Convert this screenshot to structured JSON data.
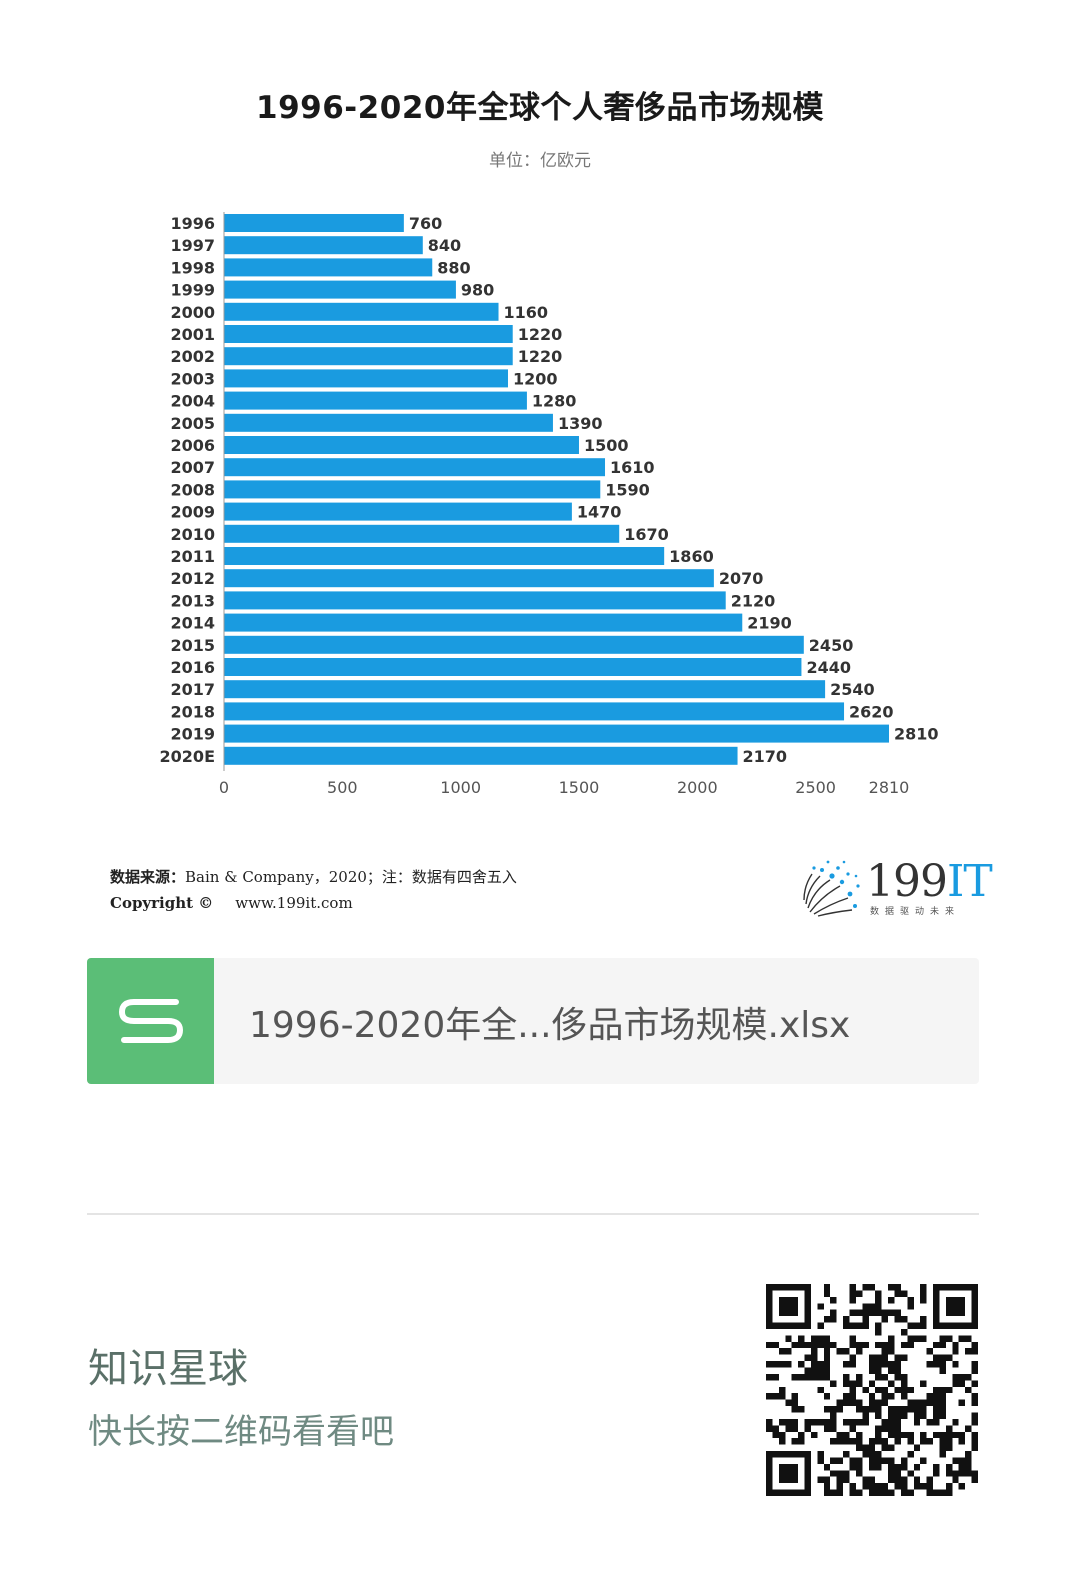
{
  "title": "1996-2020年全球个人奢侈品市场规模",
  "subtitle": "单位：亿欧元",
  "chart_data": {
    "type": "bar",
    "orientation": "horizontal",
    "title": "1996-2020年全球个人奢侈品市场规模",
    "unit": "单位：亿欧元",
    "categories": [
      "1996",
      "1997",
      "1998",
      "1999",
      "2000",
      "2001",
      "2002",
      "2003",
      "2004",
      "2005",
      "2006",
      "2007",
      "2008",
      "2009",
      "2010",
      "2011",
      "2012",
      "2013",
      "2014",
      "2015",
      "2016",
      "2017",
      "2018",
      "2019",
      "2020E"
    ],
    "values": [
      760,
      840,
      880,
      980,
      1160,
      1220,
      1220,
      1200,
      1280,
      1390,
      1500,
      1610,
      1590,
      1470,
      1670,
      1860,
      2070,
      2120,
      2190,
      2450,
      2440,
      2540,
      2620,
      2810,
      2170
    ],
    "xticks": [
      "0",
      "500",
      "1000",
      "1500",
      "2000",
      "2500",
      "2810"
    ],
    "xlim": [
      0,
      2810
    ],
    "grid": false,
    "bar_color": "#1a9be0"
  },
  "footer": {
    "source_label": "数据来源：",
    "source_text": "Bain & Company，2020；注：数据有四舍五入",
    "copyright_label": "Copyright ©",
    "site": "www.199it.com"
  },
  "logo": {
    "text_main": "199",
    "text_it": "IT",
    "tagline": "数据驱动未来"
  },
  "file": {
    "icon_letter": "S",
    "name": "1996-2020年全...侈品市场规模.xlsx"
  },
  "planet": {
    "title": "知识星球",
    "subtitle": "快长按二维码看看吧"
  }
}
